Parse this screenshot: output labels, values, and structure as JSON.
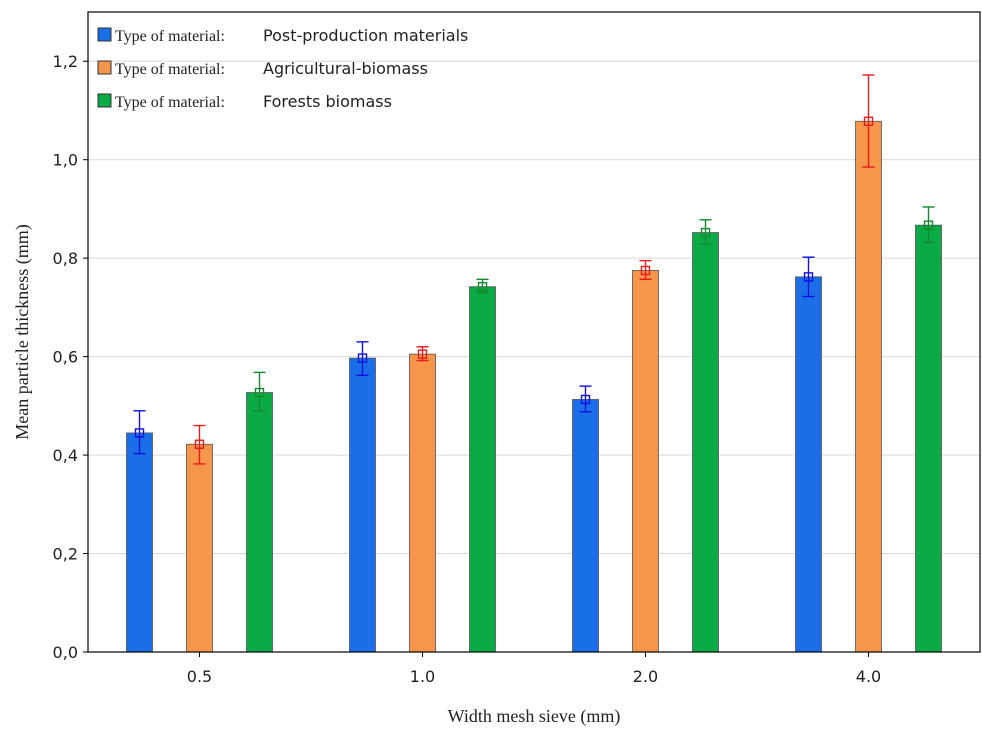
{
  "chart_data": {
    "type": "bar",
    "title": "",
    "xlabel": "Width mesh sieve (mm)",
    "ylabel": "Mean particle thickness (mm)",
    "categories": [
      "0.5",
      "1.0",
      "2.0",
      "4.0"
    ],
    "ylim": [
      0,
      1.3
    ],
    "yticks": [
      "0,0",
      "0,2",
      "0,4",
      "0,6",
      "0,8",
      "1,0",
      "1,2"
    ],
    "ytick_values": [
      0,
      0.2,
      0.4,
      0.6,
      0.8,
      1.0,
      1.2
    ],
    "grid": true,
    "legend_position": "top-left",
    "legend_prefix": "Type of material:",
    "series": [
      {
        "name": "Post-production materials",
        "color": "#1a6fe8",
        "error_color": "#1010e0",
        "values": [
          0.445,
          0.597,
          0.513,
          0.762
        ],
        "err_low": [
          0.403,
          0.562,
          0.488,
          0.722
        ],
        "err_high": [
          0.49,
          0.63,
          0.54,
          0.802
        ]
      },
      {
        "name": "Agricultural-biomass",
        "color": "#f5964a",
        "error_color": "#e81c1c",
        "values": [
          0.422,
          0.605,
          0.775,
          1.078
        ],
        "err_low": [
          0.382,
          0.592,
          0.757,
          0.985
        ],
        "err_high": [
          0.46,
          0.62,
          0.795,
          1.172
        ]
      },
      {
        "name": "Forests biomass",
        "color": "#0aaa46",
        "error_color": "#138a2e",
        "values": [
          0.527,
          0.742,
          0.852,
          0.867
        ],
        "err_low": [
          0.49,
          0.73,
          0.828,
          0.832
        ],
        "err_high": [
          0.568,
          0.757,
          0.878,
          0.904
        ]
      }
    ]
  }
}
